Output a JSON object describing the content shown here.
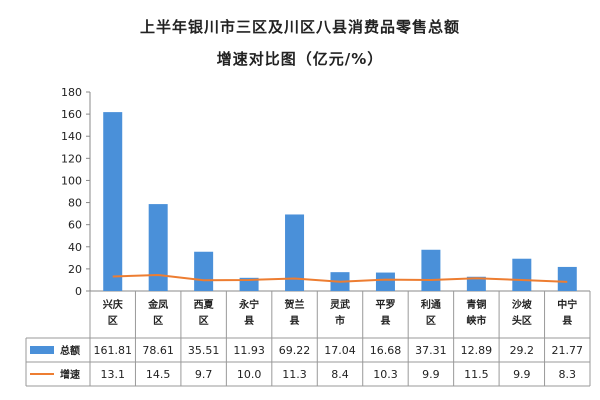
{
  "page": {
    "title_line1": "上半年银川市三区及川区八县消费品零售总额",
    "title_line2": "增速对比图（亿元/%）"
  },
  "chart_data": {
    "type": "bar",
    "title": "上半年银川市三区及川区八县消费品零售总额增速对比图（亿元/%）",
    "categories": [
      "兴庆区",
      "金凤区",
      "西夏区",
      "永宁县",
      "贺兰县",
      "灵武市",
      "平罗县",
      "利通区",
      "青铜峡市",
      "沙坡头区",
      "中宁县"
    ],
    "category_lines": [
      [
        "兴庆",
        "区"
      ],
      [
        "金凤",
        "区"
      ],
      [
        "西夏",
        "区"
      ],
      [
        "永宁",
        "县"
      ],
      [
        "贺兰",
        "县"
      ],
      [
        "灵武",
        "市"
      ],
      [
        "平罗",
        "县"
      ],
      [
        "利通",
        "区"
      ],
      [
        "青铜",
        "峡市"
      ],
      [
        "沙坡",
        "头区"
      ],
      [
        "中宁",
        "县"
      ]
    ],
    "series": [
      {
        "name": "总额",
        "type": "bar",
        "color": "#4a90d9",
        "values": [
          161.81,
          78.61,
          35.51,
          11.93,
          69.22,
          17.04,
          16.68,
          37.31,
          12.89,
          29.2,
          21.77
        ],
        "labels": [
          "161.81",
          "78.61",
          "35.51",
          "11.93",
          "69.22",
          "17.04",
          "16.68",
          "37.31",
          "12.89",
          "29.2",
          "21.77"
        ]
      },
      {
        "name": "增速",
        "type": "line",
        "color": "#ed7d31",
        "values": [
          13.1,
          14.5,
          9.7,
          10.0,
          11.3,
          8.4,
          10.3,
          9.9,
          11.5,
          9.9,
          8.3
        ],
        "labels": [
          "13.1",
          "14.5",
          "9.7",
          "10.0",
          "11.3",
          "8.4",
          "10.3",
          "9.9",
          "11.5",
          "9.9",
          "8.3"
        ]
      }
    ],
    "ylim": [
      0,
      180
    ],
    "yticks": [
      0,
      20,
      40,
      60,
      80,
      100,
      120,
      140,
      160,
      180
    ],
    "grid": false,
    "legend": "data-table-left",
    "xlabel": "",
    "ylabel": ""
  }
}
